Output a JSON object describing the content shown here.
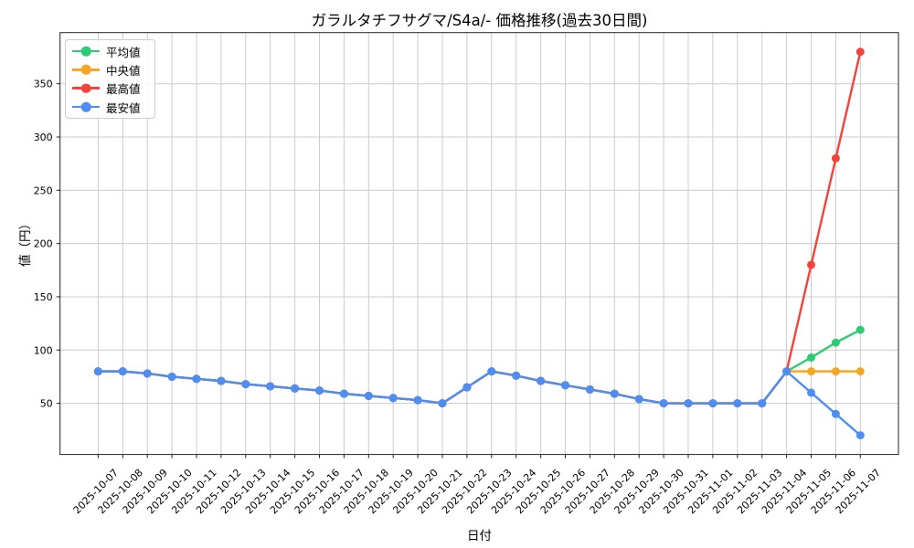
{
  "chart_data": {
    "type": "line",
    "title": "ガラルタチフサグマ/S4a/- 価格推移(過去30日間)",
    "xlabel": "日付",
    "ylabel": "値（円）",
    "x": [
      "2025-10-07",
      "2025-10-08",
      "2025-10-09",
      "2025-10-10",
      "2025-10-11",
      "2025-10-12",
      "2025-10-13",
      "2025-10-14",
      "2025-10-15",
      "2025-10-16",
      "2025-10-17",
      "2025-10-18",
      "2025-10-19",
      "2025-10-20",
      "2025-10-21",
      "2025-10-22",
      "2025-10-23",
      "2025-10-24",
      "2025-10-25",
      "2025-10-26",
      "2025-10-27",
      "2025-10-28",
      "2025-10-29",
      "2025-10-30",
      "2025-10-31",
      "2025-11-01",
      "2025-11-02",
      "2025-11-03",
      "2025-11-04",
      "2025-11-05",
      "2025-11-06",
      "2025-11-07"
    ],
    "series": [
      {
        "name": "平均値",
        "color": "#2ecc71",
        "values": [
          80,
          80,
          78,
          75,
          73,
          71,
          68,
          66,
          64,
          62,
          59,
          57,
          55,
          53,
          50,
          65,
          80,
          76,
          71,
          67,
          63,
          59,
          54,
          50,
          50,
          50,
          50,
          50,
          80,
          93,
          107,
          119
        ]
      },
      {
        "name": "中央値",
        "color": "#f5a623",
        "values": [
          80,
          80,
          78,
          75,
          73,
          71,
          68,
          66,
          64,
          62,
          59,
          57,
          55,
          53,
          50,
          65,
          80,
          76,
          71,
          67,
          63,
          59,
          54,
          50,
          50,
          50,
          50,
          50,
          80,
          80,
          80,
          80
        ]
      },
      {
        "name": "最高値",
        "color": "#f4433a",
        "values": [
          80,
          80,
          78,
          75,
          73,
          71,
          68,
          66,
          64,
          62,
          59,
          57,
          55,
          53,
          50,
          65,
          80,
          76,
          71,
          67,
          63,
          59,
          54,
          50,
          50,
          50,
          50,
          50,
          80,
          180,
          280,
          380
        ]
      },
      {
        "name": "最安値",
        "color": "#4d8ef5",
        "values": [
          80,
          80,
          78,
          75,
          73,
          71,
          68,
          66,
          64,
          62,
          59,
          57,
          55,
          53,
          50,
          65,
          80,
          76,
          71,
          67,
          63,
          59,
          54,
          50,
          50,
          50,
          50,
          50,
          80,
          60,
          40,
          20
        ]
      }
    ],
    "yticks": [
      50,
      100,
      150,
      200,
      250,
      300,
      350
    ],
    "ylim": [
      2,
      398
    ],
    "grid": true,
    "legend_position": "upper left"
  }
}
